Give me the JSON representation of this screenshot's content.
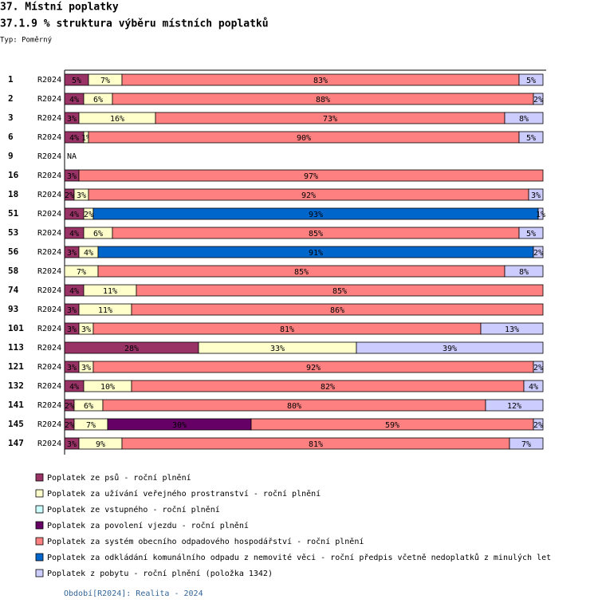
{
  "chart_data": {
    "type": "bar",
    "section_title": "37. Místní poplatky",
    "title": "37.1.9 % struktura výběru místních poplatků",
    "subtitle": "Typ: Poměrný",
    "footer": "Období[R2024]: Realita - 2024",
    "na_label": "NA",
    "stacked": true,
    "orientation": "horizontal",
    "xlim": [
      0,
      100
    ],
    "categories": [
      "1",
      "2",
      "3",
      "6",
      "9",
      "16",
      "18",
      "51",
      "53",
      "56",
      "58",
      "74",
      "93",
      "101",
      "113",
      "121",
      "132",
      "141",
      "145",
      "147"
    ],
    "periods": [
      "R2024",
      "R2024",
      "R2024",
      "R2024",
      "R2024",
      "R2024",
      "R2024",
      "R2024",
      "R2024",
      "R2024",
      "R2024",
      "R2024",
      "R2024",
      "R2024",
      "R2024",
      "R2024",
      "R2024",
      "R2024",
      "R2024",
      "R2024"
    ],
    "series": [
      {
        "name": "Poplatek ze psů - roční plnění",
        "color": "#993366",
        "values": [
          5,
          4,
          3,
          4,
          null,
          3,
          2,
          4,
          4,
          3,
          null,
          4,
          3,
          3,
          28,
          3,
          4,
          2,
          2,
          3
        ],
        "value_labels": [
          "5%",
          "4%",
          "3%",
          "4%",
          null,
          "3%",
          "2%",
          "4%",
          "4%",
          "3%",
          null,
          "4%",
          "3%",
          "3%",
          "28%",
          "3%",
          "4%",
          "2%",
          "2%",
          "3%"
        ]
      },
      {
        "name": "Poplatek za užívání veřejného prostranství - roční plnění",
        "color": "#ffffcc",
        "values": [
          7,
          6,
          16,
          1,
          null,
          null,
          3,
          2,
          6,
          4,
          7,
          11,
          11,
          3,
          33,
          3,
          10,
          6,
          7,
          9
        ],
        "value_labels": [
          "7%",
          "6%",
          "16%",
          "1%",
          null,
          null,
          "3%",
          "2%",
          "6%",
          "4%",
          "7%",
          "11%",
          "11%",
          "3%",
          "33%",
          "3%",
          "10%",
          "6%",
          "7%",
          "9%"
        ]
      },
      {
        "name": "Poplatek ze vstupného - roční plnění",
        "color": "#ccffff",
        "values": [
          null,
          null,
          null,
          null,
          null,
          null,
          null,
          null,
          null,
          null,
          null,
          null,
          null,
          null,
          null,
          null,
          null,
          null,
          null,
          null
        ],
        "value_labels": [
          null,
          null,
          null,
          null,
          null,
          null,
          null,
          null,
          null,
          null,
          null,
          null,
          null,
          null,
          null,
          null,
          null,
          null,
          null,
          null
        ]
      },
      {
        "name": "Poplatek za povolení vjezdu - roční plnění",
        "color": "#660066",
        "values": [
          null,
          null,
          null,
          null,
          null,
          null,
          null,
          null,
          null,
          null,
          null,
          null,
          null,
          null,
          null,
          null,
          null,
          null,
          30,
          null
        ],
        "value_labels": [
          null,
          null,
          null,
          null,
          null,
          null,
          null,
          null,
          null,
          null,
          null,
          null,
          null,
          null,
          null,
          null,
          null,
          null,
          "30%",
          null
        ]
      },
      {
        "name": "Poplatek za systém obecního odpadového hospodářství - roční plnění",
        "color": "#ff8080",
        "values": [
          83,
          88,
          73,
          90,
          null,
          97,
          92,
          null,
          85,
          null,
          85,
          85,
          86,
          81,
          null,
          92,
          82,
          80,
          59,
          81
        ],
        "value_labels": [
          "83%",
          "88%",
          "73%",
          "90%",
          null,
          "97%",
          "92%",
          null,
          "85%",
          null,
          "85%",
          "85%",
          "86%",
          "81%",
          null,
          "92%",
          "82%",
          "80%",
          "59%",
          "81%"
        ]
      },
      {
        "name": "Poplatek za odkládání komunálního odpadu z nemovité věci - roční předpis včetně nedoplatků z minulých let",
        "color": "#0066cc",
        "values": [
          null,
          null,
          null,
          null,
          null,
          null,
          null,
          93,
          null,
          91,
          null,
          null,
          null,
          null,
          null,
          null,
          null,
          null,
          null,
          null
        ],
        "value_labels": [
          null,
          null,
          null,
          null,
          null,
          null,
          null,
          "93%",
          null,
          "91%",
          null,
          null,
          null,
          null,
          null,
          null,
          null,
          null,
          null,
          null
        ]
      },
      {
        "name": "Poplatek z pobytu - roční plnění (položka 1342)",
        "color": "#ccccff",
        "values": [
          5,
          2,
          8,
          5,
          null,
          null,
          3,
          1,
          5,
          2,
          8,
          null,
          null,
          13,
          39,
          2,
          4,
          12,
          2,
          7
        ],
        "value_labels": [
          "5%",
          "2%",
          "8%",
          "5%",
          null,
          null,
          "3%",
          "1%",
          "5%",
          "2%",
          "8%",
          null,
          null,
          "13%",
          "39%",
          "2%",
          "4%",
          "12%",
          "2%",
          "7%"
        ]
      }
    ]
  }
}
